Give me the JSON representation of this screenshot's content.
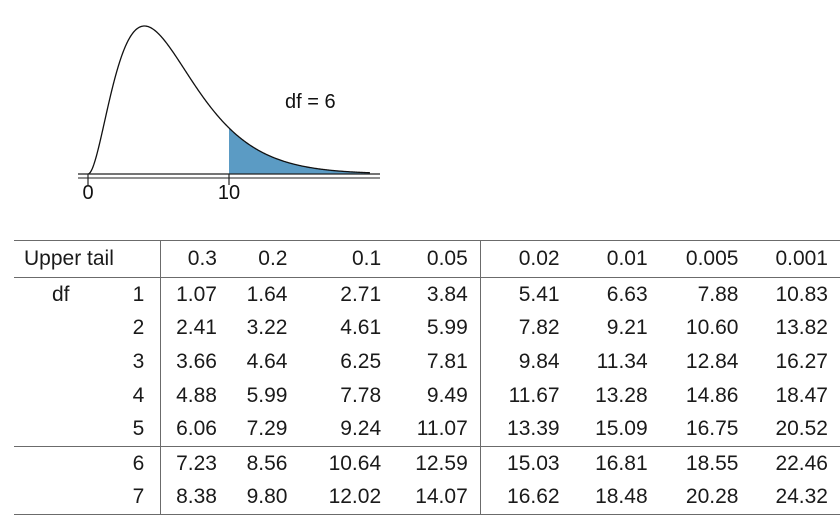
{
  "chart_data": {
    "type": "area",
    "distribution": "chi-square",
    "df": 6,
    "df_label": "df = 6",
    "shaded_from": 10,
    "xlim": [
      0,
      20
    ],
    "x_ticks": [
      0,
      10
    ],
    "x_tick_labels": [
      "0",
      "10"
    ],
    "shade_color": "#5b9bc4"
  },
  "table": {
    "header_label": "Upper tail",
    "row_label": "df",
    "upper_tails": [
      "0.3",
      "0.2",
      "0.1",
      "0.05",
      "0.02",
      "0.01",
      "0.005",
      "0.001"
    ],
    "rows": [
      {
        "df": "1",
        "values": [
          "1.07",
          "1.64",
          "2.71",
          "3.84",
          "5.41",
          "6.63",
          "7.88",
          "10.83"
        ]
      },
      {
        "df": "2",
        "values": [
          "2.41",
          "3.22",
          "4.61",
          "5.99",
          "7.82",
          "9.21",
          "10.60",
          "13.82"
        ]
      },
      {
        "df": "3",
        "values": [
          "3.66",
          "4.64",
          "6.25",
          "7.81",
          "9.84",
          "11.34",
          "12.84",
          "16.27"
        ]
      },
      {
        "df": "4",
        "values": [
          "4.88",
          "5.99",
          "7.78",
          "9.49",
          "11.67",
          "13.28",
          "14.86",
          "18.47"
        ]
      },
      {
        "df": "5",
        "values": [
          "6.06",
          "7.29",
          "9.24",
          "11.07",
          "13.39",
          "15.09",
          "16.75",
          "20.52"
        ]
      },
      {
        "df": "6",
        "values": [
          "7.23",
          "8.56",
          "10.64",
          "12.59",
          "15.03",
          "16.81",
          "18.55",
          "22.46"
        ]
      },
      {
        "df": "7",
        "values": [
          "8.38",
          "9.80",
          "12.02",
          "14.07",
          "16.62",
          "18.48",
          "20.28",
          "24.32"
        ]
      }
    ]
  }
}
